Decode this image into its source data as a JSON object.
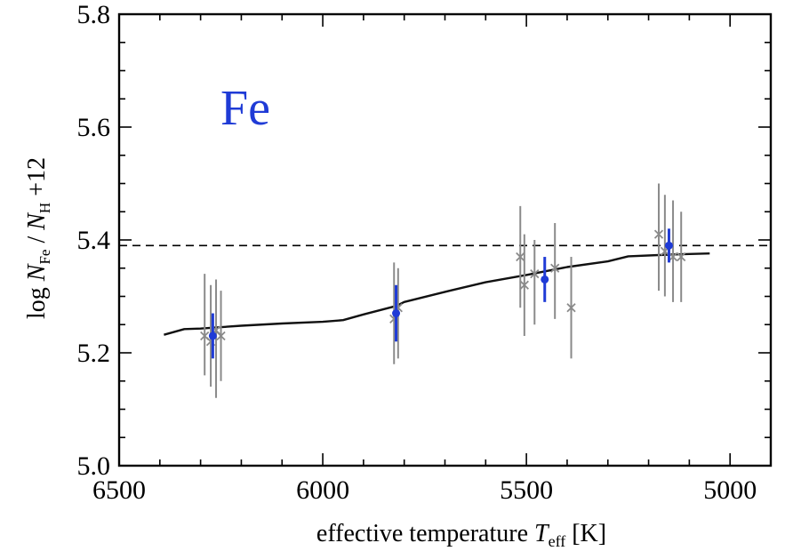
{
  "chart_data": {
    "type": "scatter",
    "title": "",
    "annotation": "Fe",
    "xlabel": {
      "prefix": "effective temperature ",
      "symbol": "T",
      "subscript": "eff",
      "unit": " [K]"
    },
    "ylabel": {
      "prefix": "log ",
      "n1": "N",
      "n1_sub": "Fe",
      "slash": " / ",
      "n2": "N",
      "n2_sub": "H",
      "suffix": " +12"
    },
    "xlim": [
      6500,
      4900
    ],
    "ylim": [
      5.0,
      5.8
    ],
    "x_reversed": true,
    "xticks": [
      6500,
      6000,
      5500,
      5000
    ],
    "xtick_labels": [
      "6500",
      "6000",
      "5500",
      "5000"
    ],
    "yticks": [
      5.0,
      5.2,
      5.4,
      5.6,
      5.8
    ],
    "ytick_labels": [
      "5.0",
      "5.2",
      "5.4",
      "5.6",
      "5.8"
    ],
    "grid": false,
    "reference_line": {
      "y": 5.39,
      "style": "dashed"
    },
    "model_curve": {
      "x": [
        6390,
        6340,
        6300,
        6200,
        6100,
        6000,
        5950,
        5900,
        5820,
        5800,
        5700,
        5600,
        5500,
        5450,
        5400,
        5300,
        5250,
        5150,
        5050
      ],
      "y": [
        5.232,
        5.242,
        5.243,
        5.248,
        5.252,
        5.255,
        5.258,
        5.268,
        5.283,
        5.29,
        5.308,
        5.325,
        5.338,
        5.345,
        5.352,
        5.362,
        5.371,
        5.374,
        5.376
      ]
    },
    "series": [
      {
        "marker": "filled-circle",
        "color": "#1f3bd6",
        "x": [
          6270,
          5820,
          5455,
          5150
        ],
        "y": [
          5.23,
          5.27,
          5.33,
          5.39
        ],
        "yerr": [
          0.04,
          0.05,
          0.04,
          0.03
        ]
      },
      {
        "marker": "cross",
        "color": "#8a8a8a",
        "points": [
          {
            "x": 6290,
            "y": 5.23,
            "lo": 5.16,
            "hi": 5.34
          },
          {
            "x": 6275,
            "y": 5.22,
            "lo": 5.14,
            "hi": 5.32
          },
          {
            "x": 6262,
            "y": 5.24,
            "lo": 5.12,
            "hi": 5.33
          },
          {
            "x": 6250,
            "y": 5.23,
            "lo": 5.15,
            "hi": 5.31
          },
          {
            "x": 5825,
            "y": 5.26,
            "lo": 5.18,
            "hi": 5.36
          },
          {
            "x": 5815,
            "y": 5.28,
            "lo": 5.19,
            "hi": 5.35
          },
          {
            "x": 5515,
            "y": 5.37,
            "lo": 5.28,
            "hi": 5.46
          },
          {
            "x": 5505,
            "y": 5.32,
            "lo": 5.23,
            "hi": 5.41
          },
          {
            "x": 5480,
            "y": 5.34,
            "lo": 5.25,
            "hi": 5.4
          },
          {
            "x": 5430,
            "y": 5.35,
            "lo": 5.26,
            "hi": 5.43
          },
          {
            "x": 5390,
            "y": 5.28,
            "lo": 5.19,
            "hi": 5.37
          },
          {
            "x": 5175,
            "y": 5.41,
            "lo": 5.31,
            "hi": 5.5
          },
          {
            "x": 5160,
            "y": 5.38,
            "lo": 5.3,
            "hi": 5.48
          },
          {
            "x": 5140,
            "y": 5.37,
            "lo": 5.29,
            "hi": 5.47
          },
          {
            "x": 5120,
            "y": 5.37,
            "lo": 5.29,
            "hi": 5.45
          }
        ]
      }
    ]
  }
}
